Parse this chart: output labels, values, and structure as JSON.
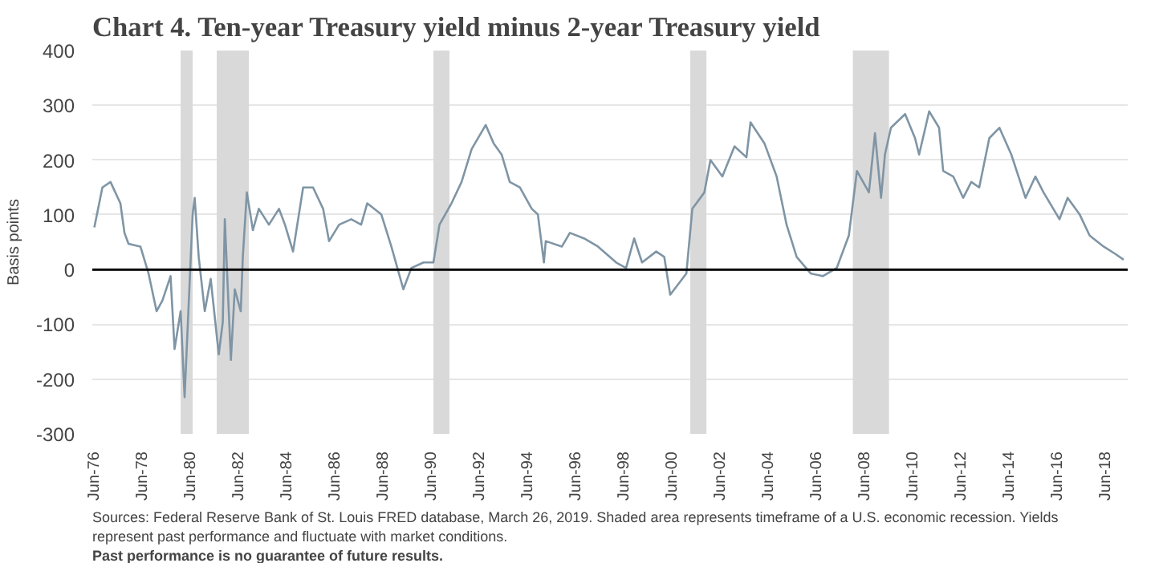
{
  "chart_data": {
    "type": "line",
    "title": "Chart 4. Ten-year Treasury yield minus 2-year Treasury yield",
    "ylabel": "Basis points",
    "annotations": [
      "Sources: Federal Reserve Bank of St. Louis FRED database, March 26, 2019. Shaded area represents timeframe of a U.S. economic recession. Yields represent past performance and fluctuate with market conditions.",
      "Past performance is no guarantee of future results."
    ],
    "x": [
      "1976-06",
      "1976-10",
      "1977-02",
      "1977-07",
      "1977-09",
      "1977-11",
      "1978-05",
      "1978-09",
      "1979-01",
      "1979-04",
      "1979-08",
      "1979-10",
      "1980-01",
      "1980-03",
      "1980-07",
      "1980-08",
      "1980-10",
      "1981-01",
      "1981-04",
      "1981-08",
      "1981-10",
      "1981-11",
      "1982-02",
      "1982-04",
      "1982-07",
      "1982-08",
      "1982-10",
      "1983-01",
      "1983-04",
      "1983-09",
      "1984-02",
      "1984-05",
      "1984-09",
      "1985-02",
      "1985-07",
      "1985-12",
      "1986-03",
      "1986-08",
      "1987-02",
      "1987-07",
      "1987-10",
      "1988-05",
      "1988-10",
      "1989-04",
      "1989-08",
      "1990-02",
      "1990-07",
      "1990-10",
      "1991-04",
      "1991-09",
      "1992-02",
      "1992-09",
      "1993-01",
      "1993-05",
      "1993-09",
      "1994-02",
      "1994-08",
      "1994-11",
      "1995-02",
      "1995-03",
      "1995-11",
      "1996-03",
      "1996-10",
      "1997-05",
      "1998-02",
      "1998-07",
      "1998-11",
      "1999-03",
      "1999-10",
      "2000-02",
      "2000-05",
      "2001-01",
      "2001-04",
      "2001-10",
      "2002-01",
      "2002-07",
      "2003-01",
      "2003-07",
      "2003-09",
      "2004-04",
      "2004-10",
      "2005-03",
      "2005-08",
      "2006-03",
      "2006-09",
      "2007-04",
      "2007-10",
      "2008-02",
      "2008-08",
      "2008-11",
      "2009-02",
      "2009-04",
      "2009-07",
      "2010-02",
      "2010-07",
      "2010-09",
      "2011-02",
      "2011-07",
      "2011-09",
      "2012-02",
      "2012-07",
      "2012-11",
      "2013-03",
      "2013-08",
      "2014-01",
      "2014-07",
      "2015-02",
      "2015-07",
      "2015-11",
      "2016-07",
      "2016-11",
      "2017-05",
      "2017-10",
      "2018-05",
      "2018-11",
      "2019-03"
    ],
    "series": [
      {
        "color": "#7f95a5",
        "values": [
          77,
          150,
          160,
          121,
          67,
          47,
          42,
          -7,
          -76,
          -56,
          -12,
          -145,
          -76,
          -233,
          101,
          131,
          23,
          -76,
          -17,
          -155,
          -96,
          92,
          -165,
          -36,
          -76,
          23,
          141,
          72,
          111,
          82,
          111,
          82,
          33,
          150,
          150,
          111,
          52,
          82,
          92,
          82,
          121,
          101,
          42,
          -36,
          3,
          13,
          13,
          82,
          121,
          160,
          220,
          264,
          230,
          210,
          160,
          150,
          111,
          101,
          13,
          52,
          42,
          67,
          57,
          42,
          13,
          3,
          57,
          13,
          33,
          23,
          -46,
          -7,
          111,
          141,
          200,
          170,
          225,
          205,
          269,
          230,
          170,
          82,
          23,
          -7,
          -12,
          3,
          62,
          180,
          141,
          249,
          131,
          210,
          259,
          284,
          240,
          210,
          289,
          259,
          180,
          170,
          131,
          160,
          150,
          240,
          259,
          210,
          131,
          170,
          141,
          92,
          131,
          101,
          62,
          42,
          28,
          18
        ]
      }
    ],
    "xlim": [
      "1976-05",
      "2019-05"
    ],
    "xticks": [
      {
        "value": "1976-06",
        "label": "Jun-76"
      },
      {
        "value": "1978-06",
        "label": "Jun-78"
      },
      {
        "value": "1980-06",
        "label": "Jun-80"
      },
      {
        "value": "1982-06",
        "label": "Jun-82"
      },
      {
        "value": "1984-06",
        "label": "Jun-84"
      },
      {
        "value": "1986-06",
        "label": "Jun-86"
      },
      {
        "value": "1988-06",
        "label": "Jun-88"
      },
      {
        "value": "1990-06",
        "label": "Jun-90"
      },
      {
        "value": "1992-06",
        "label": "Jun-92"
      },
      {
        "value": "1994-06",
        "label": "Jun-94"
      },
      {
        "value": "1996-06",
        "label": "Jun-96"
      },
      {
        "value": "1998-06",
        "label": "Jun-98"
      },
      {
        "value": "2000-06",
        "label": "Jun-00"
      },
      {
        "value": "2002-06",
        "label": "Jun-02"
      },
      {
        "value": "2004-06",
        "label": "Jun-04"
      },
      {
        "value": "2006-06",
        "label": "Jun-06"
      },
      {
        "value": "2008-06",
        "label": "Jun-08"
      },
      {
        "value": "2010-06",
        "label": "Jun-10"
      },
      {
        "value": "2012-06",
        "label": "Jun-12"
      },
      {
        "value": "2014-06",
        "label": "Jun-14"
      },
      {
        "value": "2016-06",
        "label": "Jun-16"
      },
      {
        "value": "2018-06",
        "label": "Jun-18"
      }
    ],
    "ylim": [
      -300,
      400
    ],
    "yticks": [
      -300,
      -200,
      -100,
      0,
      100,
      200,
      300,
      400
    ],
    "grid": "y",
    "ref_lines": [
      {
        "axis": "y",
        "value": 0,
        "color": "#000000"
      }
    ],
    "bands": [
      {
        "axis": "x",
        "from": "1980-01",
        "to": "1980-07",
        "color": "#d9d9d9"
      },
      {
        "axis": "x",
        "from": "1981-07",
        "to": "1982-11",
        "color": "#d9d9d9"
      },
      {
        "axis": "x",
        "from": "1990-07",
        "to": "1991-03",
        "color": "#d9d9d9"
      },
      {
        "axis": "x",
        "from": "2001-03",
        "to": "2001-11",
        "color": "#d9d9d9"
      },
      {
        "axis": "x",
        "from": "2007-12",
        "to": "2009-06",
        "color": "#d9d9d9"
      }
    ]
  }
}
